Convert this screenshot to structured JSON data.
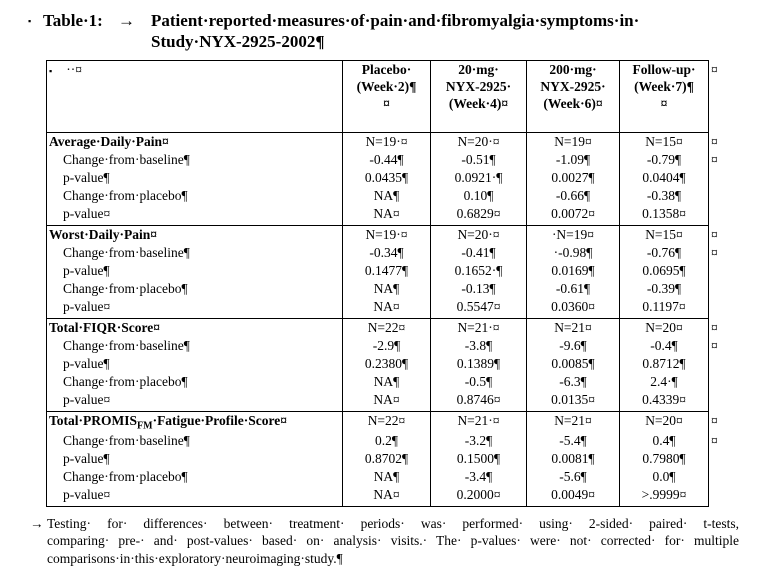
{
  "colors": {
    "text": "#000000",
    "background": "#ffffff"
  },
  "title": {
    "bullet": "▪",
    "label": "Table·1:",
    "tab": "→",
    "line1": "Patient·reported·measures·of·pain·and·fibromyalgia·symptoms·in·",
    "line2": "Study·NYX-2925-2002¶"
  },
  "table": {
    "row_marker": "¤",
    "stub_header": {
      "bullet": "▪",
      "marks": "··¤"
    },
    "columns": [
      {
        "line1": "Placebo·",
        "line2": "(Week·2)¶",
        "line3": "¤"
      },
      {
        "line1": "20·mg·",
        "line2": "NYX-2925·",
        "line3": "(Week·4)¤"
      },
      {
        "line1": "200·mg·",
        "line2": "NYX-2925·",
        "line3": "(Week·6)¤"
      },
      {
        "line1": "Follow-up·",
        "line2": "(Week·7)¶",
        "line3": "¤"
      }
    ],
    "sections": [
      {
        "name": "Average·Daily·Pain¤",
        "n": [
          "N=19·¤",
          "N=20·¤",
          "N=19¤",
          "N=15¤"
        ],
        "labels": [
          "Change·from·baseline¶",
          "p-value¶",
          "Change·from·placebo¶",
          "p-value¤"
        ],
        "cols": [
          [
            "-0.44¶",
            "0.0435¶",
            "NA¶",
            "NA¤"
          ],
          [
            "-0.51¶",
            "0.0921·¶",
            "0.10¶",
            "0.6829¤"
          ],
          [
            "-1.09¶",
            "0.0027¶",
            "-0.66¶",
            "0.0072¤"
          ],
          [
            "-0.79¶",
            "0.0404¶",
            "-0.38¶",
            "0.1358¤"
          ]
        ]
      },
      {
        "name": "Worst·Daily·Pain¤",
        "n": [
          "N=19·¤",
          "N=20·¤",
          "·N=19¤",
          "N=15¤"
        ],
        "labels": [
          "Change·from·baseline¶",
          "p-value¶",
          "Change·from·placebo¶",
          "p-value¤"
        ],
        "cols": [
          [
            "-0.34¶",
            "0.1477¶",
            "NA¶",
            "NA¤"
          ],
          [
            "-0.41¶",
            "0.1652·¶",
            "-0.13¶",
            "0.5547¤"
          ],
          [
            "·-0.98¶",
            "0.0169¶",
            "-0.61¶",
            "0.0360¤"
          ],
          [
            "-0.76¶",
            "0.0695¶",
            "-0.39¶",
            "0.1197¤"
          ]
        ]
      },
      {
        "name": "Total·FIQR·Score¤",
        "n": [
          "N=22¤",
          "N=21·¤",
          "N=21¤",
          "N=20¤"
        ],
        "labels": [
          "Change·from·baseline¶",
          "p-value¶",
          "Change·from·placebo¶",
          "p-value¤"
        ],
        "cols": [
          [
            "-2.9¶",
            "0.2380¶",
            "NA¶",
            "NA¤"
          ],
          [
            "-3.8¶",
            "0.1389¶",
            "-0.5¶",
            "0.8746¤"
          ],
          [
            "-9.6¶",
            "0.0085¶",
            "-6.3¶",
            "0.0135¤"
          ],
          [
            "-0.4¶",
            "0.8712¶",
            "2.4·¶",
            "0.4339¤"
          ]
        ]
      },
      {
        "name_pre": "Total·PROMIS",
        "name_sub": "FM",
        "name_post": "·Fatigue·Profile·Score¤",
        "n": [
          "N=22¤",
          "N=21·¤",
          "N=21¤",
          "N=20¤"
        ],
        "labels": [
          "Change·from·baseline¶",
          "p-value¶",
          "Change·from·placebo¶",
          "p-value¤"
        ],
        "cols": [
          [
            "0.2¶",
            "0.8702¶",
            "NA¶",
            "NA¤"
          ],
          [
            "-3.2¶",
            "0.1500¶",
            "-3.4¶",
            "0.2000¤"
          ],
          [
            "-5.4¶",
            "0.0081¶",
            "-5.6¶",
            "0.0049¤"
          ],
          [
            "0.4¶",
            "0.7980¶",
            "0.0¶",
            ">.9999¤"
          ]
        ]
      }
    ]
  },
  "footnote": {
    "tab": "→",
    "line1": "Testing· for· differences· between· treatment· periods· was· performed· using· 2-sided· paired· t-tests,",
    "line2": "comparing· pre-· and· post-values· based· on· analysis· visits.· The· p-values· were· not· corrected· for· multiple",
    "line3": "comparisons·in·this·exploratory·neuroimaging·study.¶"
  }
}
